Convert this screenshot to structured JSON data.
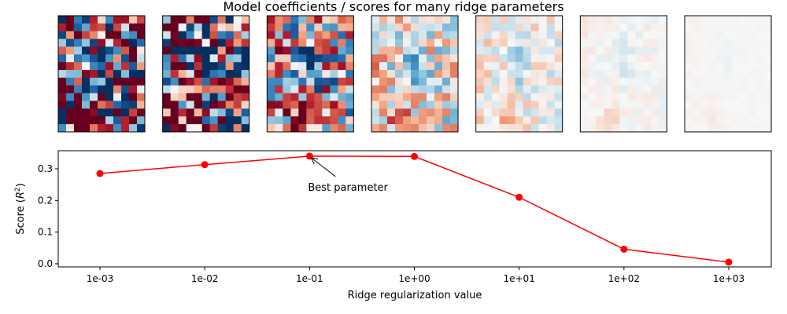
{
  "chart_data": {
    "type": "line",
    "title": "Model coefficients / scores for many ridge parameters",
    "xlabel": "Ridge regularization value",
    "ylabel": "Score (R²)",
    "ylabel_base": "Score (",
    "ylabel_symbol": "R",
    "ylabel_sup": "2",
    "ylabel_close": ")",
    "x_scale": "log",
    "x": [
      0.001,
      0.01,
      0.1,
      1,
      10,
      100,
      1000
    ],
    "x_tick_labels": [
      "1e-03",
      "1e-02",
      "1e-01",
      "1e+00",
      "1e+01",
      "1e+02",
      "1e+03"
    ],
    "ylim": [
      -0.01,
      0.357
    ],
    "y_ticks": [
      0.0,
      0.1,
      0.2,
      0.3
    ],
    "y_tick_labels": [
      "0.0",
      "0.1",
      "0.2",
      "0.3"
    ],
    "series": [
      {
        "color": "#ff0000",
        "values": [
          0.285,
          0.313,
          0.34,
          0.339,
          0.21,
          0.046,
          0.005
        ]
      }
    ],
    "annotation": {
      "text": "Best parameter",
      "x": 0.1,
      "y": 0.34
    },
    "grid": false,
    "coefficient_maps": {
      "count": 7,
      "colormap": "red-white-blue diverging",
      "ridge_values": [
        0.001,
        0.01,
        0.1,
        1,
        10,
        100,
        1000
      ]
    }
  }
}
